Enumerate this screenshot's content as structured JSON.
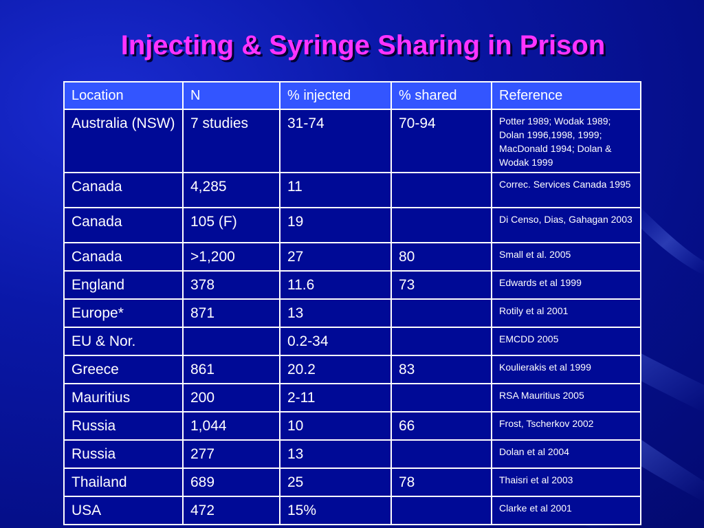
{
  "slide": {
    "title": "Injecting & Syringe Sharing in Prison",
    "background_color": "#0a18a8",
    "title_color": "#ff33ff",
    "header_color": "#3355ff"
  },
  "table": {
    "headers": [
      "Location",
      "N",
      "% injected",
      "% shared",
      "Reference"
    ],
    "rows": [
      {
        "location": "Australia (NSW)",
        "n": "7 studies",
        "injected": "31-74",
        "shared": "70-94",
        "reference": "Potter 1989; Wodak 1989; Dolan 1996,1998, 1999; MacDonald 1994; Dolan & Wodak 1999"
      },
      {
        "location": "Canada",
        "n": "4,285",
        "injected": "11",
        "shared": "",
        "reference": "Correc. Services Canada 1995"
      },
      {
        "location": "Canada",
        "n": "105 (F)",
        "injected": "19",
        "shared": "",
        "reference": "Di Censo, Dias, Gahagan 2003"
      },
      {
        "location": "Canada",
        "n": ">1,200",
        "injected": "27",
        "shared": "80",
        "reference": "Small et al. 2005"
      },
      {
        "location": "England",
        "n": "378",
        "injected": "11.6",
        "shared": "73",
        "reference": "Edwards et al 1999"
      },
      {
        "location": "Europe*",
        "n": "871",
        "injected": "13",
        "shared": "",
        "reference": "Rotily et al 2001"
      },
      {
        "location": "EU & Nor.",
        "n": "",
        "injected": "0.2-34",
        "shared": "",
        "reference": "EMCDD 2005"
      },
      {
        "location": "Greece",
        "n": "861",
        "injected": "20.2",
        "shared": "83",
        "reference": "Koulierakis et al 1999"
      },
      {
        "location": "Mauritius",
        "n": "200",
        "injected": "2-11",
        "shared": "",
        "reference": "RSA Mauritius 2005"
      },
      {
        "location": "Russia",
        "n": "1,044",
        "injected": "10",
        "shared": "66",
        "reference": "Frost, Tscherkov 2002"
      },
      {
        "location": "Russia",
        "n": "277",
        "injected": "13",
        "shared": "",
        "reference": "Dolan et al 2004"
      },
      {
        "location": "Thailand",
        "n": "689",
        "injected": "25",
        "shared": "78",
        "reference": "Thaisri et al 2003"
      },
      {
        "location": "USA",
        "n": "472",
        "injected": "15%",
        "shared": "",
        "reference": "Clarke et al 2001"
      }
    ]
  }
}
